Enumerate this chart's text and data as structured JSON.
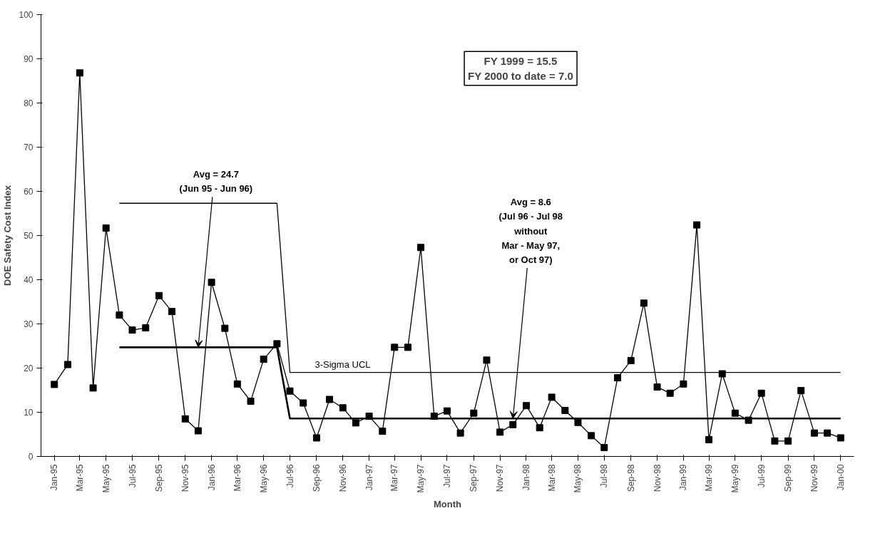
{
  "chart_data": {
    "type": "line",
    "xlabel": "Month",
    "ylabel": "DOE Safety Cost Index",
    "x": [
      "1995-01",
      "1995-02",
      "1995-03",
      "1995-04",
      "1995-05",
      "1995-06",
      "1995-07",
      "1995-08",
      "1995-09",
      "1995-10",
      "1995-11",
      "1995-12",
      "1996-01",
      "1996-02",
      "1996-03",
      "1996-04",
      "1996-05",
      "1996-06",
      "1996-07",
      "1996-08",
      "1996-09",
      "1996-10",
      "1996-11",
      "1996-12",
      "1997-01",
      "1997-02",
      "1997-03",
      "1997-04",
      "1997-05",
      "1997-06",
      "1997-07",
      "1997-08",
      "1997-09",
      "1997-10",
      "1997-11",
      "1997-12",
      "1998-01",
      "1998-02",
      "1998-03",
      "1998-04",
      "1998-05",
      "1998-06",
      "1998-07",
      "1998-08",
      "1998-09",
      "1998-10",
      "1998-11",
      "1998-12",
      "1999-01",
      "1999-02",
      "1999-03",
      "1999-04",
      "1999-05",
      "1999-06",
      "1999-07",
      "1999-08",
      "1999-09",
      "1999-10",
      "1999-11",
      "1999-12",
      "2000-01"
    ],
    "series": [
      {
        "color": "#000000",
        "marker": "square",
        "values": [
          16.3,
          20.8,
          86.8,
          15.5,
          51.7,
          32.0,
          28.6,
          29.1,
          36.4,
          32.8,
          8.5,
          5.8,
          39.4,
          29.0,
          16.4,
          12.5,
          22.0,
          25.5,
          14.8,
          12.1,
          4.2,
          12.9,
          11.0,
          7.6,
          9.1,
          5.7,
          24.7,
          24.7,
          47.3,
          9.1,
          10.3,
          5.3,
          9.8,
          21.8,
          5.5,
          7.2,
          11.5,
          6.5,
          13.4,
          10.4,
          7.7,
          4.7,
          2.0,
          17.8,
          21.7,
          34.7,
          15.7,
          14.3,
          16.4,
          52.4,
          3.8,
          18.7,
          9.8,
          8.2,
          14.3,
          3.5,
          3.5,
          14.9,
          5.3,
          5.3,
          4.2
        ]
      },
      {
        "color": "#000000",
        "marker": "none",
        "x": [
          "1995-06",
          "1996-06",
          "1996-07",
          "2000-01"
        ],
        "values": [
          24.7,
          24.7,
          8.6,
          8.6
        ]
      },
      {
        "name": "3-Sigma UCL",
        "color": "#000000",
        "marker": "none",
        "x": [
          "1995-06",
          "1996-06",
          "1996-07",
          "2000-01"
        ],
        "values": [
          57.3,
          57.3,
          19.0,
          19.0
        ]
      }
    ],
    "xlim": [
      "1994-12",
      "2000-02"
    ],
    "ylim": [
      0,
      100
    ],
    "yticks": [
      0,
      10,
      20,
      30,
      40,
      50,
      60,
      70,
      80,
      90,
      100
    ],
    "xticks": [
      {
        "value": "1995-01",
        "label": "Jan-95"
      },
      {
        "value": "1995-03",
        "label": "Mar-95"
      },
      {
        "value": "1995-05",
        "label": "May-95"
      },
      {
        "value": "1995-07",
        "label": "Jul-95"
      },
      {
        "value": "1995-09",
        "label": "Sep-95"
      },
      {
        "value": "1995-11",
        "label": "Nov-95"
      },
      {
        "value": "1996-01",
        "label": "Jan-96"
      },
      {
        "value": "1996-03",
        "label": "Mar-96"
      },
      {
        "value": "1996-05",
        "label": "May-96"
      },
      {
        "value": "1996-07",
        "label": "Jul-96"
      },
      {
        "value": "1996-09",
        "label": "Sep-96"
      },
      {
        "value": "1996-11",
        "label": "Nov-96"
      },
      {
        "value": "1997-01",
        "label": "Jan-97"
      },
      {
        "value": "1997-03",
        "label": "Mar-97"
      },
      {
        "value": "1997-05",
        "label": "May-97"
      },
      {
        "value": "1997-07",
        "label": "Jul-97"
      },
      {
        "value": "1997-09",
        "label": "Sep-97"
      },
      {
        "value": "1997-11",
        "label": "Nov-97"
      },
      {
        "value": "1998-01",
        "label": "Jan-98"
      },
      {
        "value": "1998-03",
        "label": "Mar-98"
      },
      {
        "value": "1998-05",
        "label": "May-98"
      },
      {
        "value": "1998-07",
        "label": "Jul-98"
      },
      {
        "value": "1998-09",
        "label": "Sep-98"
      },
      {
        "value": "1998-11",
        "label": "Nov-98"
      },
      {
        "value": "1999-01",
        "label": "Jan-99"
      },
      {
        "value": "1999-03",
        "label": "Mar-99"
      },
      {
        "value": "1999-05",
        "label": "May-99"
      },
      {
        "value": "1999-07",
        "label": "Jul-99"
      },
      {
        "value": "1999-09",
        "label": "Sep-99"
      },
      {
        "value": "1999-11",
        "label": "Nov-99"
      },
      {
        "value": "2000-01",
        "label": "Jan-00"
      }
    ],
    "annotations": [
      {
        "text": "Avg = 24.7\n(Jun 95 - Jun 96)",
        "x": "1995-12",
        "y": 24.7
      },
      {
        "text": "Avg = 8.6\n(Jul 96 - Jul 98\nwithout\nMar - May 97,\nor Oct 97)",
        "x": "1997-12",
        "y": 8.6
      },
      "FY 1999 = 15.5\nFY 2000 to date = 7.0"
    ],
    "grid": false,
    "line_style": "solid"
  }
}
